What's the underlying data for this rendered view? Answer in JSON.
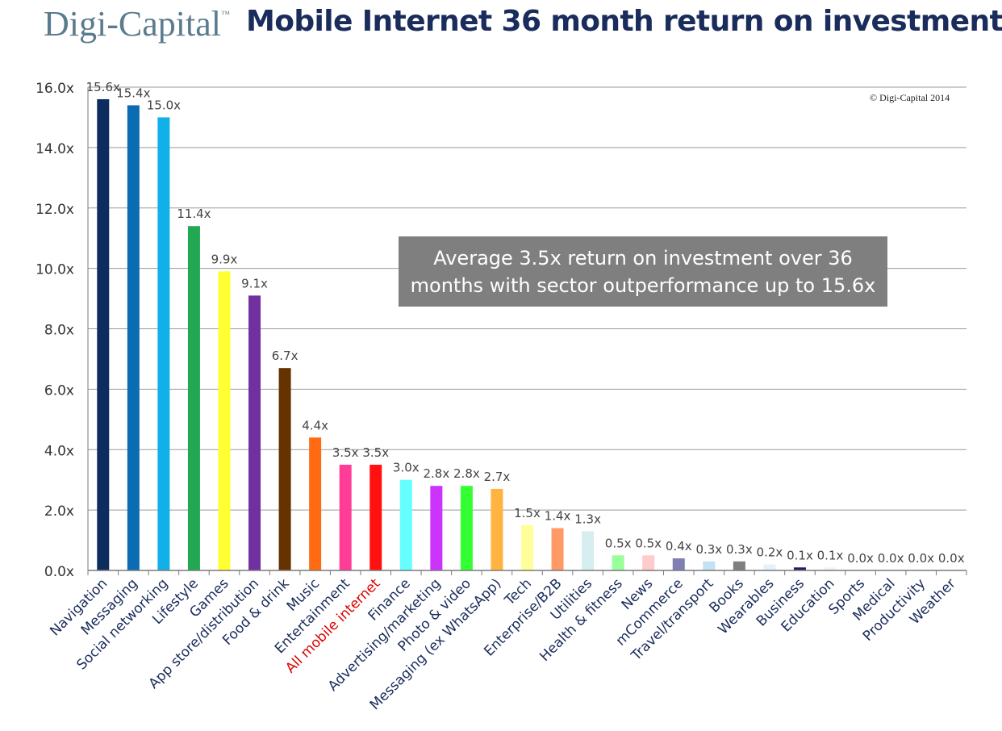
{
  "header": {
    "logo": "Digi-Capital",
    "logo_mark": "™",
    "title": "Mobile Internet 36 month return on investment"
  },
  "copyright": "© Digi-Capital 2014",
  "callout": {
    "line1": "Average 3.5x return on investment over 36",
    "line2": "months with sector outperformance up to 15.6x"
  },
  "chart_data": {
    "type": "bar",
    "title": "Mobile Internet 36 month return on investment",
    "categories": [
      "Navigation",
      "Messaging",
      "Social networking",
      "Lifestyle",
      "Games",
      "App store/distribution",
      "Food & drink",
      "Music",
      "Entertainment",
      "All mobile internet",
      "Finance",
      "Advertising/marketing",
      "Photo & video",
      "Messaging (ex WhatsApp)",
      "Tech",
      "Enterprise/B2B",
      "Utilities",
      "Health & fitness",
      "News",
      "mCommerce",
      "Travel/transport",
      "Books",
      "Wearables",
      "Business",
      "Education",
      "Sports",
      "Medical",
      "Productivity",
      "Weather"
    ],
    "values": [
      15.6,
      15.4,
      15.0,
      11.4,
      9.9,
      9.1,
      6.7,
      4.4,
      3.5,
      3.5,
      3.0,
      2.8,
      2.8,
      2.7,
      1.5,
      1.4,
      1.3,
      0.5,
      0.5,
      0.4,
      0.3,
      0.3,
      0.2,
      0.1,
      0.1,
      0.0,
      0.0,
      0.0,
      0.0
    ],
    "data_labels": [
      "15.6x",
      "15.4x",
      "15.0x",
      "11.4x",
      "9.9x",
      "9.1x",
      "6.7x",
      "4.4x",
      "3.5x",
      "3.5x",
      "3.0x",
      "2.8x",
      "2.8x",
      "2.7x",
      "1.5x",
      "1.4x",
      "1.3x",
      "0.5x",
      "0.5x",
      "0.4x",
      "0.3x",
      "0.3x",
      "0.2x",
      "0.1x",
      "0.1x",
      "0.0x",
      "0.0x",
      "0.0x",
      "0.0x"
    ],
    "colors": [
      "#0d2d5e",
      "#0b6bb3",
      "#12b0e8",
      "#22a852",
      "#ffff33",
      "#7030a0",
      "#663300",
      "#ff6a13",
      "#ff3d97",
      "#ff1111",
      "#66ffff",
      "#cc33ff",
      "#33ff33",
      "#ffb340",
      "#ffff99",
      "#ff9966",
      "#d6eef0",
      "#99ff99",
      "#ffcccc",
      "#7f7fb2",
      "#c6e0f4",
      "#7f7f7f",
      "#e6f0f8",
      "#1f1f5e",
      "#f0f4f8",
      "#ffffff",
      "#ffffff",
      "#ffffff",
      "#ffffff"
    ],
    "highlight_category": "All mobile internet",
    "highlight_color": "#dd0000",
    "category_color": "#1a2c5b",
    "yticks": [
      "0.0x",
      "2.0x",
      "4.0x",
      "6.0x",
      "8.0x",
      "10.0x",
      "12.0x",
      "14.0x",
      "16.0x"
    ],
    "ylim": [
      0,
      16
    ],
    "grid": true,
    "legend": "none"
  }
}
